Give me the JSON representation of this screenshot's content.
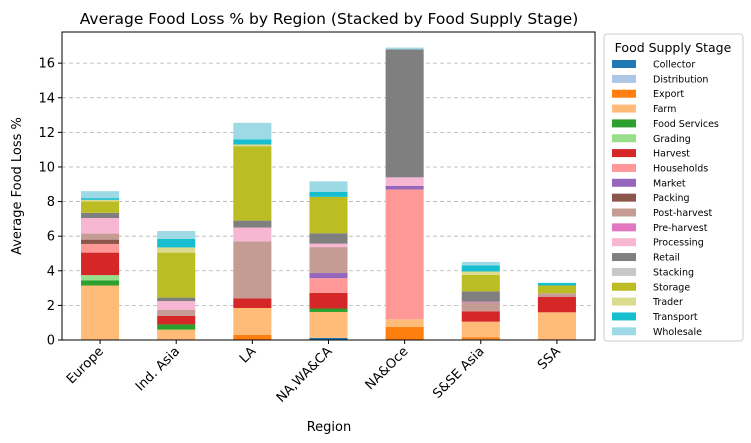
{
  "chart_data": {
    "type": "bar",
    "stacked": true,
    "title": "Average Food Loss % by Region (Stacked by Food Supply Stage)",
    "xlabel": "Region",
    "ylabel": "Average Food Loss %",
    "ylim": [
      0,
      17.8
    ],
    "yticks": [
      0,
      2,
      4,
      6,
      8,
      10,
      12,
      14,
      16
    ],
    "grid": "y-dashed",
    "legend_title": "Food Supply Stage",
    "legend_placement": "outside-right",
    "categories": [
      "Europe",
      "Ind. Asia",
      "LA",
      "NA,WA&CA",
      "NA&Oce",
      "S&SE Asia",
      "SSA"
    ],
    "series": [
      {
        "name": "Collector",
        "color": "#1f77b4",
        "values": [
          0,
          0,
          0,
          0.12,
          0,
          0,
          0
        ]
      },
      {
        "name": "Distribution",
        "color": "#aec7e8",
        "values": [
          0,
          0,
          0,
          0,
          0,
          0.04,
          0
        ]
      },
      {
        "name": "Export",
        "color": "#ff7f0e",
        "values": [
          0,
          0,
          0.3,
          0,
          0.75,
          0.12,
          0
        ]
      },
      {
        "name": "Farm",
        "color": "#ffbb78",
        "values": [
          3.15,
          0.6,
          1.55,
          1.5,
          0.45,
          0.9,
          1.6
        ]
      },
      {
        "name": "Food Services",
        "color": "#2ca02c",
        "values": [
          0.3,
          0.3,
          0,
          0.2,
          0,
          0,
          0
        ]
      },
      {
        "name": "Grading",
        "color": "#98df8a",
        "values": [
          0.3,
          0,
          0,
          0,
          0,
          0,
          0
        ]
      },
      {
        "name": "Harvest",
        "color": "#d62728",
        "values": [
          1.3,
          0.5,
          0.55,
          0.9,
          0,
          0.6,
          0.9
        ]
      },
      {
        "name": "Households",
        "color": "#ff9896",
        "values": [
          0.5,
          0,
          0,
          0.85,
          7.5,
          0,
          0
        ]
      },
      {
        "name": "Market",
        "color": "#9467bd",
        "values": [
          0,
          0,
          0,
          0.3,
          0.2,
          0,
          0
        ]
      },
      {
        "name": "Packing",
        "color": "#8c564b",
        "values": [
          0.25,
          0,
          0,
          0,
          0,
          0,
          0
        ]
      },
      {
        "name": "Post-harvest",
        "color": "#c49c94",
        "values": [
          0.35,
          0.35,
          3.3,
          1.5,
          0,
          0.5,
          0.2
        ]
      },
      {
        "name": "Pre-harvest",
        "color": "#e377c2",
        "values": [
          0,
          0,
          0,
          0,
          0,
          0.05,
          0
        ]
      },
      {
        "name": "Processing",
        "color": "#f7b6d2",
        "values": [
          0.9,
          0.5,
          0.8,
          0.2,
          0.5,
          0,
          0
        ]
      },
      {
        "name": "Retail",
        "color": "#7f7f7f",
        "values": [
          0.3,
          0.2,
          0.4,
          0.6,
          7.4,
          0.6,
          0
        ]
      },
      {
        "name": "Stacking",
        "color": "#c7c7c7",
        "values": [
          0,
          0,
          0,
          0,
          0,
          0,
          0
        ]
      },
      {
        "name": "Storage",
        "color": "#bcbd22",
        "values": [
          0.65,
          2.6,
          4.3,
          2.1,
          0,
          0.95,
          0.45
        ]
      },
      {
        "name": "Trader",
        "color": "#dbdb8d",
        "values": [
          0.1,
          0.3,
          0.1,
          0,
          0,
          0.2,
          0
        ]
      },
      {
        "name": "Transport",
        "color": "#17becf",
        "values": [
          0.1,
          0.5,
          0.3,
          0.3,
          0,
          0.35,
          0.15
        ]
      },
      {
        "name": "Wholesale",
        "color": "#9edae5",
        "values": [
          0.4,
          0.45,
          0.95,
          0.6,
          0.1,
          0.2,
          0
        ]
      }
    ]
  }
}
